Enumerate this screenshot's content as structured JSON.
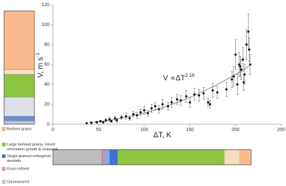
{
  "chart_data": {
    "type": "scatter",
    "x_label": "ΔT, K",
    "y_label": "V, m s",
    "y_label_sup": "-1",
    "annotation": "V ∝ΔT",
    "annotation_sup": "2.16",
    "xlim": [
      0,
      250
    ],
    "ylim": [
      0,
      120
    ],
    "xticks": [
      0,
      50,
      100,
      150,
      200,
      250
    ],
    "yticks": [
      0,
      20,
      40,
      60,
      80,
      100,
      120
    ],
    "color": "#111111",
    "x": [
      37,
      42,
      48,
      52,
      55,
      58,
      62,
      64,
      68,
      70,
      75,
      80,
      84,
      88,
      92,
      96,
      100,
      104,
      108,
      112,
      116,
      120,
      126,
      130,
      136,
      140,
      146,
      150,
      155,
      160,
      165,
      170,
      172,
      175,
      180,
      190,
      196,
      198,
      200,
      202,
      204,
      205,
      206,
      208,
      209,
      210,
      212,
      214,
      215,
      216
    ],
    "values": [
      1,
      1.5,
      2,
      3,
      2,
      4,
      5,
      3,
      6,
      4,
      7,
      8,
      6,
      10,
      9,
      12,
      14,
      11,
      16,
      18,
      15,
      20,
      18,
      22,
      25,
      24,
      28,
      22,
      30,
      29,
      31,
      22,
      20,
      34,
      32,
      35,
      45,
      48,
      70,
      40,
      60,
      58,
      55,
      65,
      42,
      50,
      80,
      93,
      75,
      60
    ],
    "errors": [
      0.5,
      1,
      1,
      1,
      1,
      1.5,
      2,
      1,
      2,
      2,
      2,
      3,
      2,
      3,
      3,
      3,
      4,
      3,
      4,
      4,
      4,
      5,
      4,
      5,
      5,
      5,
      6,
      5,
      6,
      6,
      6,
      4,
      4,
      7,
      6,
      7,
      8,
      10,
      15,
      10,
      12,
      10,
      10,
      12,
      8,
      10,
      15,
      18,
      12,
      10
    ],
    "fit": {
      "x": [
        40,
        60,
        80,
        100,
        120,
        140,
        160,
        180,
        200,
        215
      ],
      "values": [
        1.54,
        3.71,
        6.91,
        11.2,
        16.6,
        23.2,
        30.9,
        39.9,
        50,
        58.6
      ],
      "color": "#666666"
    },
    "bottom_bar": {
      "segments": [
        {
          "start": 0,
          "end": 53,
          "color": "#bdbdbd"
        },
        {
          "start": 53,
          "end": 55,
          "color": "#d9828c"
        },
        {
          "start": 55,
          "end": 62,
          "color": "#8fa6e0"
        },
        {
          "start": 62,
          "end": 71,
          "color": "#3f6fd0"
        },
        {
          "start": 71,
          "end": 188,
          "color": "#8cc63f"
        },
        {
          "start": 188,
          "end": 204,
          "color": "#f6dcc0"
        },
        {
          "start": 204,
          "end": 217,
          "color": "#f9bb8e"
        }
      ]
    },
    "left_bar": {
      "segments": [
        {
          "value": 3,
          "color": "#c9c9c9"
        },
        {
          "value": 4,
          "color": "#6d8fd8"
        },
        {
          "value": 17,
          "color": "#dde0e8"
        },
        {
          "value": 20,
          "color": "#8cc63f"
        },
        {
          "value": 4,
          "color": "#fbe3c2"
        },
        {
          "value": 52,
          "color": "#f9bb8e"
        }
      ]
    },
    "legend": [
      {
        "color": "#f9bb8e",
        "lines": [
          "Refined grains"
        ]
      },
      {
        "color": "#8cc63f",
        "lines": [
          "Large twinned grains, mixed",
          "orientation growth & seaweed"
        ]
      },
      {
        "color": "#4a72cc",
        "lines": [
          "Single grained orthogonal",
          "dendritic"
        ]
      },
      {
        "color": "#e0a0a8",
        "lines": [
          "Grain refined"
        ]
      },
      {
        "color": "#c9c9c9",
        "lines": [
          "Unmeasured"
        ]
      }
    ]
  }
}
